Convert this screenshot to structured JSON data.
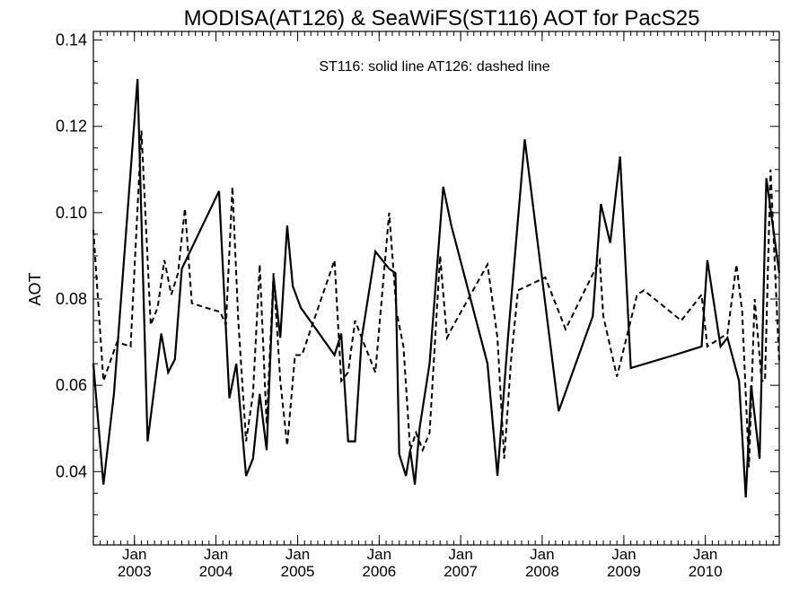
{
  "chart_data": {
    "type": "line",
    "title": "MODISA(AT126) & SeaWiFS(ST116)  AOT for PacS25",
    "annotation": "ST116: solid line   AT126: dashed line",
    "ylabel": "AOT",
    "xlabel": "",
    "xlim": [
      "2002-07-01",
      "2010-11-28"
    ],
    "ylim": [
      0.023,
      0.142
    ],
    "yticks": [
      0.04,
      0.06,
      0.08,
      0.1,
      0.12,
      0.14
    ],
    "ytick_labels": [
      "0.04",
      "0.06",
      "0.08",
      "0.10",
      "0.12",
      "0.14"
    ],
    "xticks": [
      {
        "date": "2003-01-01",
        "month": "Jan",
        "year": "2003"
      },
      {
        "date": "2004-01-01",
        "month": "Jan",
        "year": "2004"
      },
      {
        "date": "2005-01-01",
        "month": "Jan",
        "year": "2005"
      },
      {
        "date": "2006-01-01",
        "month": "Jan",
        "year": "2006"
      },
      {
        "date": "2007-01-01",
        "month": "Jan",
        "year": "2007"
      },
      {
        "date": "2008-01-01",
        "month": "Jan",
        "year": "2008"
      },
      {
        "date": "2009-01-01",
        "month": "Jan",
        "year": "2009"
      },
      {
        "date": "2010-01-01",
        "month": "Jan",
        "year": "2010"
      }
    ],
    "minor_x_ticks": "monthly",
    "grid": false,
    "legend": "none",
    "series": [
      {
        "style": "solid",
        "x": [
          "2002-07-01",
          "2002-08-15",
          "2002-10-01",
          "2003-01-15",
          "2003-03-01",
          "2003-05-01",
          "2003-06-01",
          "2003-07-01",
          "2003-08-01",
          "2004-01-15",
          "2004-03-01",
          "2004-04-01",
          "2004-05-15",
          "2004-06-15",
          "2004-07-15",
          "2004-08-15",
          "2004-09-15",
          "2004-10-15",
          "2004-11-15",
          "2004-12-10",
          "2005-01-15",
          "2005-06-15",
          "2005-07-15",
          "2005-08-15",
          "2005-09-15",
          "2005-10-15",
          "2005-12-15",
          "2006-02-15",
          "2006-03-15",
          "2006-04-01",
          "2006-05-01",
          "2006-05-20",
          "2006-06-10",
          "2006-07-01",
          "2006-08-15",
          "2006-10-15",
          "2006-11-20",
          "2007-05-01",
          "2007-06-15",
          "2007-08-01",
          "2007-10-15",
          "2008-03-15",
          "2008-08-15",
          "2008-09-20",
          "2008-11-01",
          "2008-12-15",
          "2009-02-01",
          "2009-08-15",
          "2009-12-15",
          "2010-01-10",
          "2010-03-10",
          "2010-04-10",
          "2010-06-01",
          "2010-07-01",
          "2010-07-25",
          "2010-09-01",
          "2010-10-01",
          "2010-10-25",
          "2010-11-28"
        ],
        "y": [
          0.065,
          0.037,
          0.058,
          0.131,
          0.047,
          0.072,
          0.063,
          0.066,
          0.087,
          0.105,
          0.057,
          0.065,
          0.039,
          0.043,
          0.058,
          0.045,
          0.085,
          0.071,
          0.097,
          0.083,
          0.078,
          0.067,
          0.072,
          0.047,
          0.047,
          0.071,
          0.091,
          0.087,
          0.086,
          0.044,
          0.039,
          0.045,
          0.037,
          0.05,
          0.065,
          0.106,
          0.097,
          0.065,
          0.039,
          0.071,
          0.117,
          0.054,
          0.076,
          0.102,
          0.093,
          0.113,
          0.064,
          0.067,
          0.069,
          0.089,
          0.069,
          0.071,
          0.061,
          0.034,
          0.06,
          0.043,
          0.108,
          0.099,
          0.086
        ]
      },
      {
        "style": "dashed",
        "x": [
          "2002-07-01",
          "2002-08-15",
          "2002-10-15",
          "2002-12-15",
          "2003-02-01",
          "2003-03-15",
          "2003-04-15",
          "2003-05-15",
          "2003-06-15",
          "2003-07-15",
          "2003-08-15",
          "2003-09-15",
          "2003-11-15",
          "2004-01-20",
          "2004-02-15",
          "2004-03-15",
          "2004-04-10",
          "2004-05-15",
          "2004-06-15",
          "2004-07-15",
          "2004-08-15",
          "2004-09-15",
          "2004-10-15",
          "2004-11-15",
          "2004-12-20",
          "2005-01-20",
          "2005-06-15",
          "2005-07-15",
          "2005-08-15",
          "2005-09-15",
          "2005-10-15",
          "2005-12-15",
          "2006-02-15",
          "2006-03-20",
          "2006-04-20",
          "2006-05-20",
          "2006-06-15",
          "2006-07-15",
          "2006-08-15",
          "2006-10-01",
          "2006-11-01",
          "2006-11-20",
          "2007-05-01",
          "2007-06-15",
          "2007-07-15",
          "2007-08-15",
          "2007-09-15",
          "2008-01-15",
          "2008-04-15",
          "2008-09-15",
          "2008-10-01",
          "2008-12-01",
          "2009-03-01",
          "2009-04-01",
          "2009-09-15",
          "2009-12-15",
          "2010-01-10",
          "2010-04-10",
          "2010-05-20",
          "2010-06-15",
          "2010-07-15",
          "2010-08-10",
          "2010-09-10",
          "2010-09-25",
          "2010-10-20",
          "2010-11-28"
        ],
        "y": [
          0.096,
          0.061,
          0.07,
          0.069,
          0.119,
          0.074,
          0.078,
          0.089,
          0.081,
          0.086,
          0.101,
          0.079,
          0.078,
          0.077,
          0.074,
          0.106,
          0.075,
          0.047,
          0.058,
          0.088,
          0.051,
          0.086,
          0.061,
          0.046,
          0.067,
          0.067,
          0.089,
          0.061,
          0.063,
          0.075,
          0.071,
          0.063,
          0.1,
          0.077,
          0.069,
          0.045,
          0.049,
          0.045,
          0.049,
          0.09,
          0.071,
          0.073,
          0.088,
          0.071,
          0.043,
          0.066,
          0.082,
          0.085,
          0.073,
          0.089,
          0.076,
          0.062,
          0.081,
          0.082,
          0.075,
          0.081,
          0.069,
          0.072,
          0.088,
          0.077,
          0.041,
          0.08,
          0.061,
          0.061,
          0.11,
          0.065
        ]
      }
    ]
  }
}
